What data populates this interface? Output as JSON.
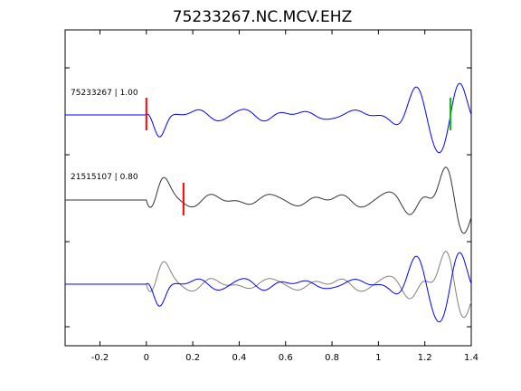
{
  "chart_data": {
    "type": "line",
    "title": "75233267.NC.MCV.EHZ",
    "xlabel": "",
    "ylabel": "",
    "xlim": [
      -0.35,
      1.4
    ],
    "x_ticks": [
      -0.2,
      0,
      0.2,
      0.4,
      0.6,
      0.8,
      1,
      1.2,
      1.4
    ],
    "x_tick_labels": [
      "-0.2",
      "0",
      "0.2",
      "0.4",
      "0.6",
      "0.8",
      "1",
      "1.2",
      "1.4"
    ],
    "grid": false,
    "colors": {
      "blue": "#0000ff",
      "black": "#333333",
      "gray": "#808080",
      "red": "#ff0000",
      "green": "#00c000",
      "axis": "#000000"
    },
    "traces": [
      {
        "id": "top",
        "label": "75233267 | 1.00",
        "color": "#0000ff",
        "onset": 0.0,
        "picks": [
          {
            "t": 0.0,
            "color": "#ff0000"
          },
          {
            "t": 1.31,
            "color": "#00c000"
          }
        ]
      },
      {
        "id": "middle",
        "label": "21515107 | 0.80",
        "color": "#333333",
        "onset": 0.0,
        "picks": [
          {
            "t": 0.16,
            "color": "#ff0000"
          }
        ]
      },
      {
        "id": "overlay",
        "label": "",
        "color": "#0000ff",
        "overlay_color": "#808080",
        "onset": 0.0,
        "picks": []
      }
    ]
  }
}
